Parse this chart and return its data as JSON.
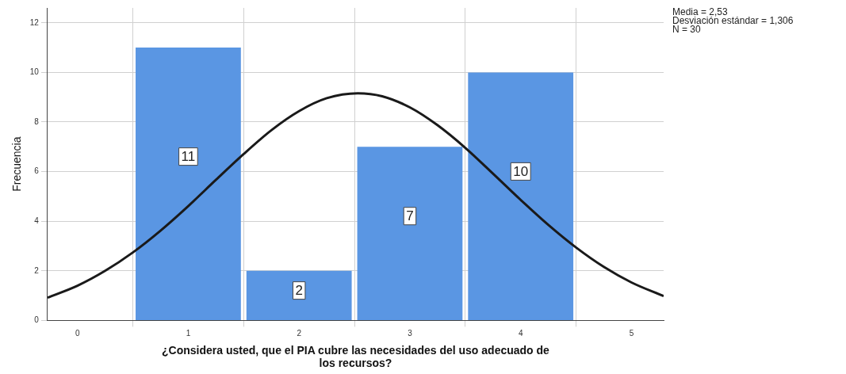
{
  "chart_data": {
    "type": "histogram",
    "xlabel": "¿Considera usted, que el PIA cubre las necesidades del uso adecuado de los recursos?",
    "ylabel": "Frecuencia",
    "bins": [
      0.5,
      1.5,
      2.5,
      3.5,
      4.5
    ],
    "values": [
      11,
      2,
      7,
      10
    ],
    "color": "#5a96e3",
    "value_labels": [
      "11",
      "2",
      "7",
      "10"
    ],
    "series": [
      {
        "type": "line",
        "color": "#1a1a1a",
        "marker": "none",
        "x": [
          -0.27,
          0,
          0.25,
          0.5,
          0.75,
          1,
          1.25,
          1.5,
          1.75,
          2,
          2.25,
          2.53,
          2.75,
          3,
          3.25,
          3.5,
          3.75,
          4,
          4.25,
          4.5,
          4.75,
          5,
          5.29
        ],
        "values": [
          0.92,
          1.4,
          2.0,
          2.74,
          3.62,
          4.61,
          5.67,
          6.71,
          7.67,
          8.44,
          8.96,
          9.16,
          9.04,
          8.59,
          7.87,
          6.96,
          5.92,
          4.86,
          3.85,
          2.94,
          2.16,
          1.53,
          0.98
        ]
      }
    ],
    "xlim": [
      -0.27,
      5.29
    ],
    "xticks": [
      0,
      1,
      2,
      3,
      4,
      5
    ],
    "ylim": [
      0,
      12.6
    ],
    "yticks": [
      0,
      2,
      4,
      6,
      8,
      10,
      12
    ],
    "grid": true,
    "legend": false,
    "annotations": [
      "Media = 2,53",
      "Desviación estándar = 1,306",
      "N = 30"
    ]
  }
}
